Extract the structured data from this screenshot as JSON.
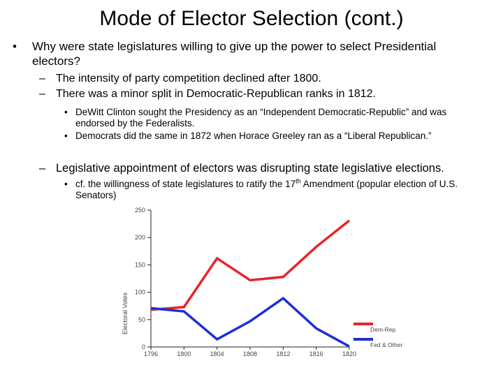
{
  "slide": {
    "title": "Mode of Elector Selection (cont.)",
    "bullet1": {
      "marker": "•",
      "text": "Why were state legislatures willing to give up the power to select Presidential electors?"
    },
    "sub1": {
      "marker": "–",
      "text": "The intensity of party competition declined after 1800."
    },
    "sub2": {
      "marker": "–",
      "text": "There was a minor split in Democratic-Republican ranks in 1812."
    },
    "subsub1": {
      "marker": "•",
      "text": "DeWitt Clinton sought the Presidency as an “Independent Democratic-Republic” and was endorsed by the Federalists."
    },
    "subsub2": {
      "marker": "•",
      "text": "Democrats did the same in 1872 when Horace Greeley ran as a “Liberal Republican.”"
    },
    "sub3": {
      "marker": "–",
      "text": "Legislative appointment of electors was disrupting state legislative elections."
    },
    "subsub3": {
      "marker": "•",
      "text_before": "cf. the willingness of state legislatures to ratify the 17",
      "sup": "th",
      "text_after": " Amendment (popular election of U.S. Senators)"
    }
  },
  "chart_data": {
    "type": "line",
    "x": [
      "1796",
      "1800",
      "1804",
      "1808",
      "1812",
      "1816",
      "1820"
    ],
    "ylabel": "Electoral Votes",
    "ylim": [
      0,
      250
    ],
    "yticks": [
      "0",
      "50",
      "100",
      "150",
      "200",
      "250"
    ],
    "grid": false,
    "legend_position": "bottom-right",
    "series": [
      {
        "name": "Dem-Rep",
        "color": "#e8232a",
        "values": [
          68,
          73,
          162,
          122,
          128,
          183,
          231
        ]
      },
      {
        "name": "Fed & Other",
        "color": "#1c2fd6",
        "values": [
          71,
          65,
          14,
          47,
          89,
          34,
          1
        ]
      }
    ]
  }
}
